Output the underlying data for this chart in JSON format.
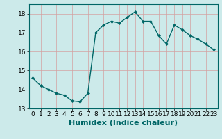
{
  "x": [
    0,
    1,
    2,
    3,
    4,
    5,
    6,
    7,
    8,
    9,
    10,
    11,
    12,
    13,
    14,
    15,
    16,
    17,
    18,
    19,
    20,
    21,
    22,
    23
  ],
  "y": [
    14.6,
    14.2,
    14.0,
    13.8,
    13.7,
    13.4,
    13.35,
    13.8,
    17.0,
    17.4,
    17.6,
    17.5,
    17.8,
    18.1,
    17.6,
    17.6,
    16.85,
    16.4,
    17.4,
    17.15,
    16.85,
    16.65,
    16.4,
    16.1
  ],
  "line_color": "#006666",
  "marker": "D",
  "marker_size": 2.0,
  "xlabel": "Humidex (Indice chaleur)",
  "xlabel_fontsize": 8,
  "ylim": [
    13,
    18.5
  ],
  "xlim": [
    -0.5,
    23.5
  ],
  "yticks": [
    13,
    14,
    15,
    16,
    17,
    18
  ],
  "xticks": [
    0,
    1,
    2,
    3,
    4,
    5,
    6,
    7,
    8,
    9,
    10,
    11,
    12,
    13,
    14,
    15,
    16,
    17,
    18,
    19,
    20,
    21,
    22,
    23
  ],
  "background_color": "#cceaea",
  "grid_color_v": "#e8b0b0",
  "grid_color_h": "#e8b0b0",
  "tick_fontsize": 6.5,
  "line_width": 1.0,
  "spine_color": "#006666"
}
